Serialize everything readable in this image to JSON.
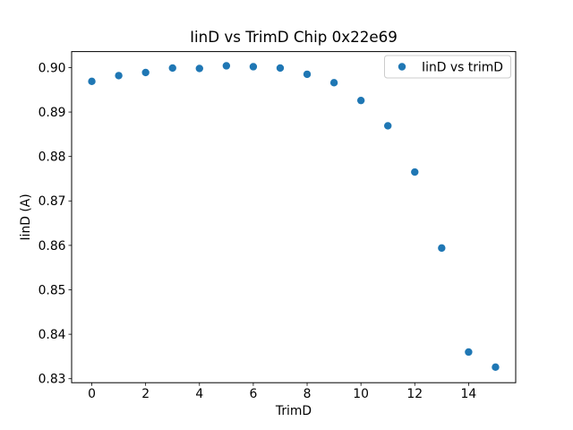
{
  "figure": {
    "background": "#ffffff",
    "text_color": "#000000",
    "spine_color": "#000000"
  },
  "legend": {
    "label": "IinD vs trimD",
    "marker_color": "#1f77b4",
    "edge_color": "#cccccc",
    "fill_color": "#ffffff",
    "position": "upper right"
  },
  "chart_data": {
    "type": "scatter",
    "title": "IinD vs TrimD Chip 0x22e69",
    "xlabel": "TrimD",
    "ylabel": "IinD (A)",
    "marker_color": "#1f77b4",
    "grid": false,
    "legend_position": "upper right",
    "x": [
      0,
      1,
      2,
      3,
      4,
      5,
      6,
      7,
      8,
      9,
      10,
      11,
      12,
      13,
      14,
      15
    ],
    "series": [
      {
        "name": "IinD vs trimD",
        "values": [
          0.8969,
          0.8982,
          0.8989,
          0.8999,
          0.8998,
          0.9004,
          0.9002,
          0.8999,
          0.8985,
          0.8966,
          0.8926,
          0.8869,
          0.8765,
          0.8594,
          0.836,
          0.8326
        ]
      }
    ],
    "xlim": [
      -0.75,
      15.75
    ],
    "ylim": [
      0.8291,
      0.9036
    ],
    "xticks": [
      0,
      2,
      4,
      6,
      8,
      10,
      12,
      14
    ],
    "yticks": [
      0.83,
      0.84,
      0.85,
      0.86,
      0.87,
      0.88,
      0.89,
      0.9
    ],
    "ytick_decimals": 2
  }
}
